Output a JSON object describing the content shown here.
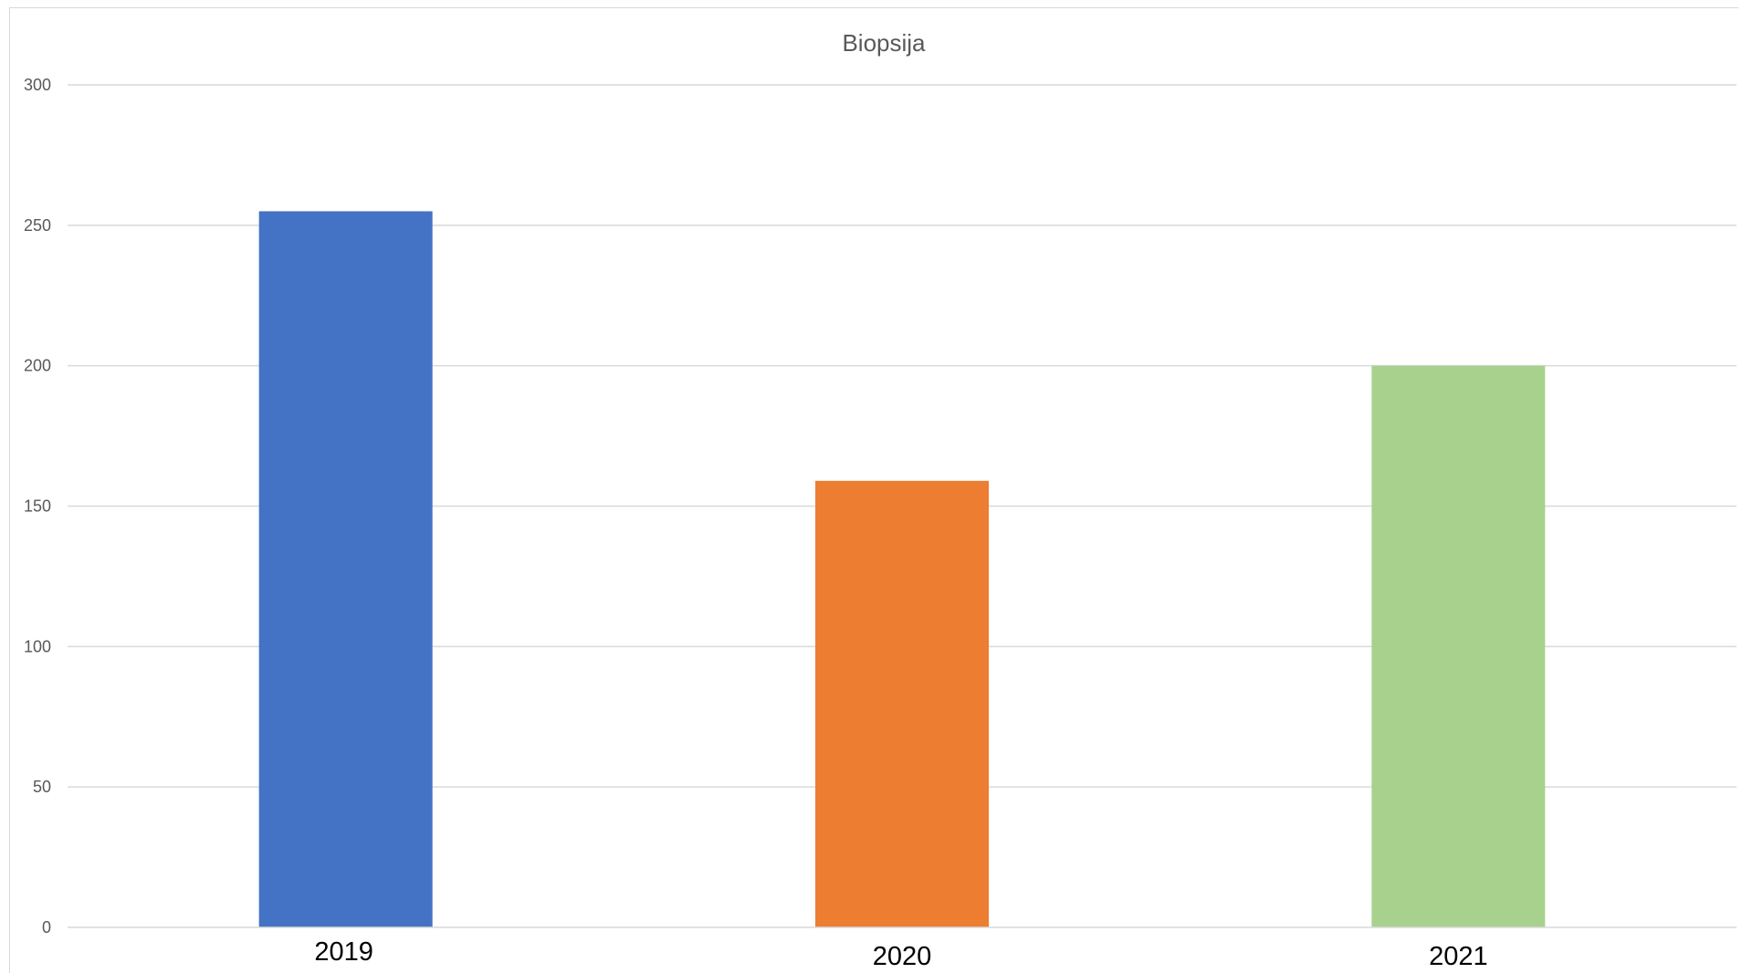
{
  "chart_data": {
    "type": "bar",
    "title": "Biopsija",
    "categories": [
      "2019",
      "2020",
      "2021"
    ],
    "values": [
      255,
      159,
      200
    ],
    "colors": [
      "#4472C4",
      "#ED7D31",
      "#A9D18E"
    ],
    "ylim": [
      0,
      300
    ],
    "yticks": [
      "0",
      "50",
      "100",
      "150",
      "200",
      "250",
      "300"
    ],
    "grid": true,
    "legend": "none",
    "xlabel": "",
    "ylabel": ""
  }
}
